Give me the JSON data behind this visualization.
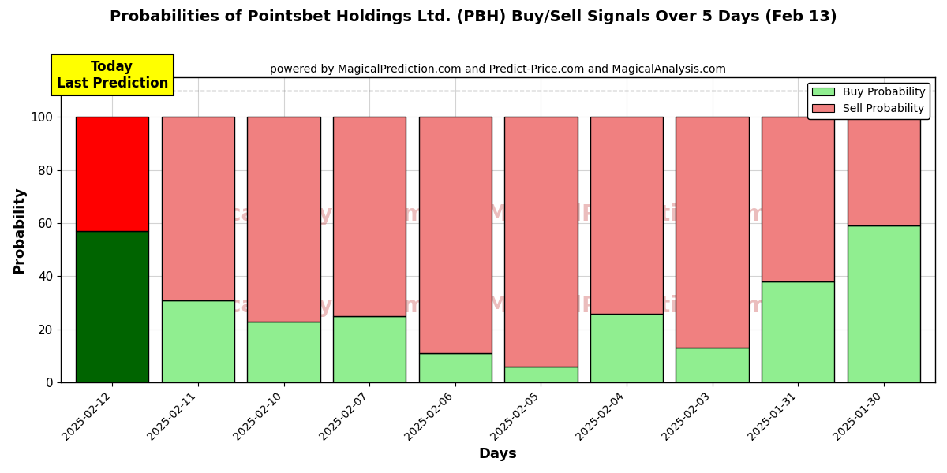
{
  "title": "Probabilities of Pointsbet Holdings Ltd. (PBH) Buy/Sell Signals Over 5 Days (Feb 13)",
  "subtitle": "powered by MagicalPrediction.com and Predict-Price.com and MagicalAnalysis.com",
  "xlabel": "Days",
  "ylabel": "Probability",
  "categories": [
    "2025-02-12",
    "2025-02-11",
    "2025-02-10",
    "2025-02-07",
    "2025-02-06",
    "2025-02-05",
    "2025-02-04",
    "2025-02-03",
    "2025-01-31",
    "2025-01-30"
  ],
  "buy_values": [
    57,
    31,
    23,
    25,
    11,
    6,
    26,
    13,
    38,
    59
  ],
  "sell_values": [
    43,
    69,
    77,
    75,
    89,
    94,
    74,
    87,
    62,
    41
  ],
  "today_buy_color": "#006400",
  "today_sell_color": "#FF0000",
  "buy_color": "#90EE90",
  "sell_color": "#F08080",
  "today_label_bg": "#FFFF00",
  "today_label_text": "Today\nLast Prediction",
  "ylim": [
    0,
    115
  ],
  "yticks": [
    0,
    20,
    40,
    60,
    80,
    100
  ],
  "dashed_line_y": 110,
  "bar_width": 0.85,
  "edgecolor": "#000000",
  "watermark_line1": "   calAnalysis.com      MagicalPrediction.com",
  "watermark_line2": "   calAnalysis.com      MagicalPrediction.com"
}
